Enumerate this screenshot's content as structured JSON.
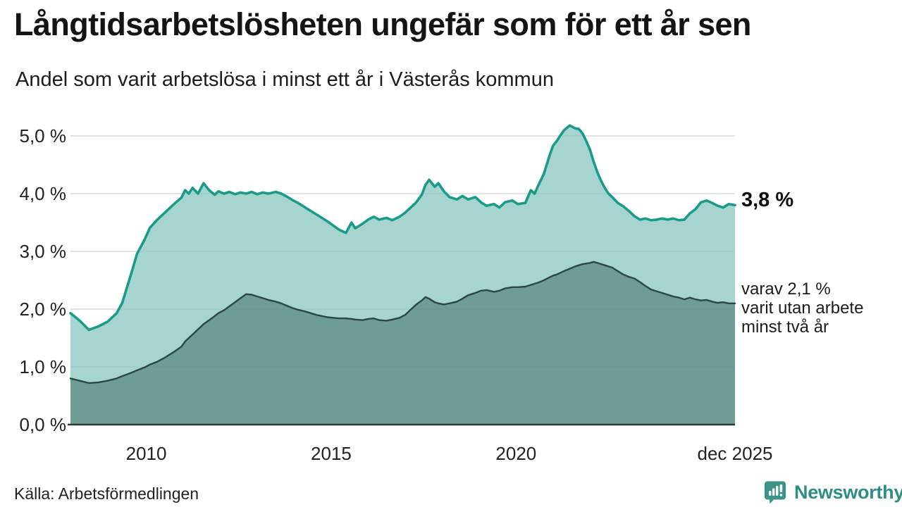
{
  "chart_data": {
    "type": "area",
    "title": "Långtidsarbetslösheten ungefär som för ett år sen",
    "subtitle": "Andel som varit arbetslösa i minst ett år i Västerås kommun",
    "x_unit": "year",
    "x_domain": [
      2007.95,
      2025.92
    ],
    "ylim": [
      0,
      5.5
    ],
    "grid": "horizontal",
    "legend_position": "right-annotations",
    "yticks": [
      {
        "value": 5.0,
        "label": "5,0 %"
      },
      {
        "value": 4.0,
        "label": "4,0 %"
      },
      {
        "value": 3.0,
        "label": "3,0 %"
      },
      {
        "value": 2.0,
        "label": "2,0 %"
      },
      {
        "value": 1.0,
        "label": "1,0 %"
      },
      {
        "value": 0.0,
        "label": "0,0 %"
      }
    ],
    "xticks": [
      {
        "value": 2010,
        "label": "2010"
      },
      {
        "value": 2015,
        "label": "2015"
      },
      {
        "value": 2020,
        "label": "2020"
      },
      {
        "value": 2025.92,
        "label": "dec 2025"
      }
    ],
    "x": [
      2007.95,
      2008.2,
      2008.45,
      2008.7,
      2008.95,
      2009.2,
      2009.35,
      2009.6,
      2009.75,
      2009.95,
      2010.1,
      2010.3,
      2010.5,
      2010.75,
      2010.95,
      2011.05,
      2011.15,
      2011.25,
      2011.4,
      2011.55,
      2011.7,
      2011.85,
      2011.95,
      2012.1,
      2012.25,
      2012.4,
      2012.55,
      2012.7,
      2012.85,
      2013.0,
      2013.15,
      2013.3,
      2013.5,
      2013.65,
      2013.8,
      2013.95,
      2014.1,
      2014.3,
      2014.45,
      2014.6,
      2014.75,
      2014.9,
      2015.05,
      2015.2,
      2015.4,
      2015.55,
      2015.65,
      2015.85,
      2016.0,
      2016.15,
      2016.3,
      2016.5,
      2016.65,
      2016.85,
      2017.0,
      2017.15,
      2017.3,
      2017.45,
      2017.55,
      2017.65,
      2017.8,
      2017.9,
      2018.05,
      2018.2,
      2018.4,
      2018.55,
      2018.7,
      2018.9,
      2019.05,
      2019.2,
      2019.4,
      2019.55,
      2019.7,
      2019.9,
      2020.05,
      2020.25,
      2020.4,
      2020.5,
      2020.6,
      2020.75,
      2020.9,
      2021.0,
      2021.1,
      2021.2,
      2021.3,
      2021.45,
      2021.6,
      2021.7,
      2021.8,
      2021.9,
      2022.0,
      2022.1,
      2022.2,
      2022.3,
      2022.4,
      2022.5,
      2022.6,
      2022.75,
      2022.9,
      2023.05,
      2023.2,
      2023.35,
      2023.5,
      2023.65,
      2023.8,
      2023.95,
      2024.1,
      2024.25,
      2024.4,
      2024.55,
      2024.7,
      2024.85,
      2025.0,
      2025.15,
      2025.3,
      2025.45,
      2025.6,
      2025.75,
      2025.92
    ],
    "series": [
      {
        "name": "Andel som varit arbetslösa minst ett år",
        "end_value_label": "3,8 %",
        "line_color": "#1a9b8a",
        "fill_color": "rgba(141,201,193,0.78)",
        "values": [
          1.93,
          1.8,
          1.64,
          1.7,
          1.78,
          1.93,
          2.11,
          2.63,
          2.96,
          3.2,
          3.41,
          3.55,
          3.67,
          3.82,
          3.93,
          4.06,
          4.0,
          4.1,
          4.0,
          4.18,
          4.06,
          3.98,
          4.04,
          4.0,
          4.03,
          3.99,
          4.02,
          4.0,
          4.03,
          3.99,
          4.02,
          4.0,
          4.03,
          4.0,
          3.95,
          3.89,
          3.84,
          3.76,
          3.7,
          3.64,
          3.58,
          3.52,
          3.45,
          3.38,
          3.32,
          3.5,
          3.4,
          3.48,
          3.55,
          3.6,
          3.55,
          3.58,
          3.54,
          3.6,
          3.67,
          3.76,
          3.85,
          3.98,
          4.15,
          4.24,
          4.12,
          4.18,
          4.04,
          3.94,
          3.9,
          3.96,
          3.9,
          3.94,
          3.85,
          3.79,
          3.82,
          3.76,
          3.85,
          3.88,
          3.82,
          3.84,
          4.06,
          4.0,
          4.14,
          4.34,
          4.65,
          4.83,
          4.91,
          5.01,
          5.1,
          5.18,
          5.13,
          5.12,
          5.04,
          4.91,
          4.76,
          4.55,
          4.37,
          4.22,
          4.1,
          4.0,
          3.94,
          3.84,
          3.78,
          3.7,
          3.61,
          3.55,
          3.57,
          3.54,
          3.55,
          3.57,
          3.55,
          3.57,
          3.54,
          3.55,
          3.66,
          3.73,
          3.85,
          3.88,
          3.84,
          3.79,
          3.76,
          3.82,
          3.8
        ]
      },
      {
        "name": "varav utan arbete minst två år",
        "end_value_label": "2,1 %",
        "line_color": "#2a4742",
        "fill_color": "rgba(54,101,93,0.5)",
        "values": [
          0.8,
          0.76,
          0.72,
          0.73,
          0.76,
          0.8,
          0.84,
          0.9,
          0.94,
          0.99,
          1.04,
          1.09,
          1.16,
          1.26,
          1.35,
          1.44,
          1.5,
          1.56,
          1.65,
          1.74,
          1.81,
          1.88,
          1.93,
          1.98,
          2.05,
          2.12,
          2.19,
          2.26,
          2.25,
          2.22,
          2.19,
          2.16,
          2.13,
          2.1,
          2.06,
          2.02,
          1.99,
          1.96,
          1.93,
          1.9,
          1.88,
          1.86,
          1.85,
          1.84,
          1.84,
          1.83,
          1.82,
          1.81,
          1.83,
          1.84,
          1.81,
          1.8,
          1.82,
          1.85,
          1.9,
          1.99,
          2.08,
          2.15,
          2.21,
          2.18,
          2.12,
          2.1,
          2.08,
          2.1,
          2.13,
          2.18,
          2.24,
          2.28,
          2.32,
          2.33,
          2.3,
          2.32,
          2.36,
          2.38,
          2.38,
          2.39,
          2.42,
          2.44,
          2.46,
          2.5,
          2.55,
          2.58,
          2.6,
          2.63,
          2.66,
          2.7,
          2.74,
          2.76,
          2.78,
          2.79,
          2.8,
          2.82,
          2.8,
          2.78,
          2.76,
          2.74,
          2.72,
          2.66,
          2.6,
          2.56,
          2.53,
          2.47,
          2.4,
          2.34,
          2.31,
          2.28,
          2.25,
          2.22,
          2.2,
          2.17,
          2.2,
          2.17,
          2.15,
          2.16,
          2.13,
          2.11,
          2.12,
          2.1,
          2.1
        ]
      }
    ],
    "annotations": {
      "series1_value": "3,8 %",
      "series2_lines": [
        "varav 2,1 %",
        "varit utan arbete",
        "minst två år"
      ]
    }
  },
  "footer": {
    "source": "Källa: Arbetsförmedlingen",
    "brand": "Newsworthy"
  },
  "colors": {
    "accent_teal": "#1a9b8a",
    "dark_line": "#2a4742",
    "gridline": "#d8d8d8",
    "axis": "#2c3b38",
    "text": "#1c1c1c",
    "brand": "#2f8e84"
  }
}
